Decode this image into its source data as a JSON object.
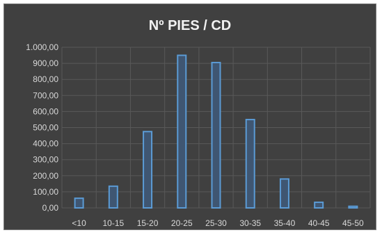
{
  "chart_data": {
    "type": "bar",
    "title": "Nº PIES / CD",
    "xlabel": "",
    "ylabel": "",
    "categories": [
      "<10",
      "10-15",
      "15-20",
      "20-25",
      "25-30",
      "30-35",
      "35-40",
      "40-45",
      "45-50"
    ],
    "values": [
      60,
      135,
      475,
      950,
      905,
      550,
      180,
      35,
      10
    ],
    "ylim": [
      0,
      1000
    ],
    "yticks": [
      "0,00",
      "100,00",
      "200,00",
      "300,00",
      "400,00",
      "500,00",
      "600,00",
      "700,00",
      "800,00",
      "900,00",
      "1.000,00"
    ],
    "grid": true,
    "legend": "none",
    "colors": {
      "background": "#404040",
      "bar_fill": "#3f5672",
      "bar_stroke": "#5b9bd5",
      "grid": "#595959",
      "text": "#d9d9d9"
    }
  }
}
